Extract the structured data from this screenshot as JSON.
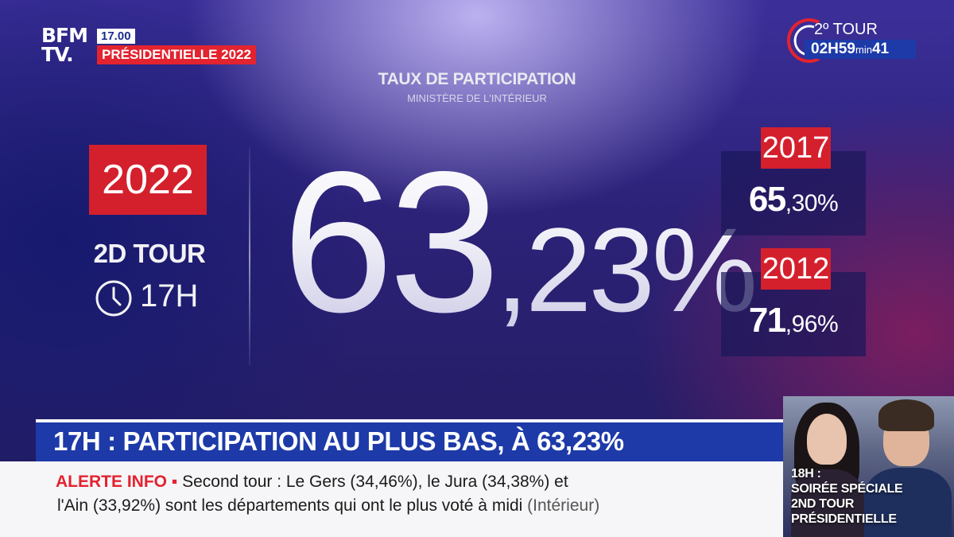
{
  "channel": {
    "logo_line1": "BFM",
    "logo_line2": "TV.",
    "time": "17.00",
    "program": "PRÉSIDENTIELLE 2022"
  },
  "countdown": {
    "round": "2º TOUR",
    "hours": "02H59",
    "min_label": "min",
    "seconds": "41"
  },
  "header": {
    "title": "TAUX DE PARTICIPATION",
    "subtitle": "MINISTÈRE DE L'INTÉRIEUR"
  },
  "current": {
    "year": "2022",
    "round": "2D TOUR",
    "hour": "17H",
    "value_int": "63",
    "value_dec": ",23%"
  },
  "comparisons": [
    {
      "year": "2017",
      "value_int": "65",
      "value_dec": ",30%"
    },
    {
      "year": "2012",
      "value_int": "71",
      "value_dec": ",96%"
    }
  ],
  "headline": "17H : PARTICIPATION AU PLUS BAS, À 63,23%",
  "ticker": {
    "alert": "ALERTE INFO ▪",
    "line1": " Second tour : Le Gers (34,46%), le Jura (34,38%) et",
    "line2": "l'Ain (33,92%) sont les départements qui ont le plus voté à midi",
    "source": " (Intérieur)"
  },
  "promo": {
    "line1": "18H :",
    "line2": "SOIRÉE SPÉCIALE",
    "line3": "2ND TOUR",
    "line4": "PRÉSIDENTIELLE"
  },
  "colors": {
    "accent_red": "#d4202d",
    "accent_blue": "#1d3aa8"
  }
}
